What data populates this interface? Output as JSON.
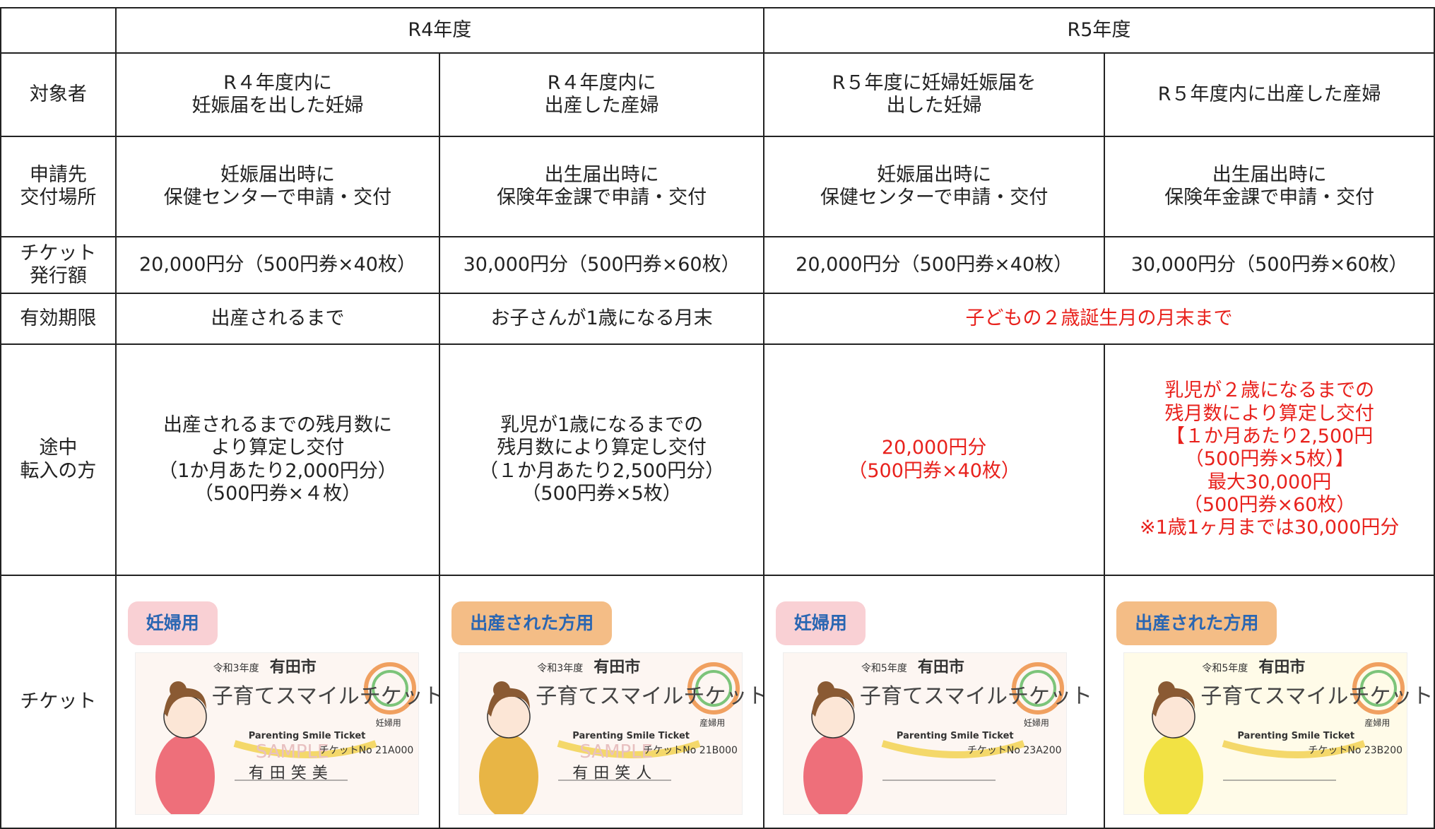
{
  "years": [
    "R4年度",
    "R5年度"
  ],
  "rows": [
    {
      "label": [
        "対象者"
      ],
      "cells": [
        [
          "R４年度内に",
          "妊娠届を出した妊婦"
        ],
        [
          "R４年度内に",
          "出産した産婦"
        ],
        [
          "R５年度に妊婦妊娠届を",
          "出した妊婦"
        ],
        [
          "R５年度内に出産した産婦"
        ]
      ]
    },
    {
      "label": [
        "申請先",
        "交付場所"
      ],
      "cells": [
        [
          "妊娠届出時に",
          "保健センターで申請・交付"
        ],
        [
          "出生届出時に",
          "保険年金課で申請・交付"
        ],
        [
          "妊娠届出時に",
          "保健センターで申請・交付"
        ],
        [
          "出生届出時に",
          "保険年金課で申請・交付"
        ]
      ]
    },
    {
      "label": [
        "チケット",
        "発行額"
      ],
      "cells": [
        [
          "20,000円分（500円券×40枚）"
        ],
        [
          "30,000円分（500円券×60枚）"
        ],
        [
          "20,000円分（500円券×40枚）"
        ],
        [
          "30,000円分（500円券×60枚）"
        ]
      ]
    },
    {
      "label": [
        "有効期限"
      ],
      "cells": [
        [
          "出産されるまで"
        ],
        [
          "お子さんが1歳になる月末"
        ],
        [
          "子どもの２歳誕生月の月末まで"
        ]
      ]
    },
    {
      "label": [
        "途中",
        "転入の方"
      ],
      "cells": [
        [
          "出産されるまでの残月数に",
          "より算定し交付",
          "（1か月あたり2,000円分）",
          "（500円券×４枚）"
        ],
        [
          "乳児が1歳になるまでの",
          "残月数により算定し交付",
          "（１か月あたり2,500円分）",
          "（500円券×5枚）"
        ],
        [
          "20,000円分",
          "（500円券×40枚）"
        ],
        [
          "乳児が２歳になるまでの",
          "残月数により算定し交付",
          "【１か月あたり2,500円",
          "（500円券×5枚）】",
          "最大30,000円",
          "（500円券×60枚）",
          "※1歳1ヶ月までは30,000円分"
        ]
      ]
    }
  ],
  "tickets": {
    "label": "チケット",
    "items": [
      {
        "tag": "妊婦用",
        "year": "令和3年度",
        "city": "有田市",
        "title": "子育てスマイルチケット",
        "english": "Parenting Smile Ticket",
        "kind": "妊婦用",
        "number": "チケットNo 21A000",
        "name": "有田笑美",
        "sample": "SAMPLE"
      },
      {
        "tag": "出産された方用",
        "year": "令和3年度",
        "city": "有田市",
        "title": "子育てスマイルチケット",
        "english": "Parenting Smile Ticket",
        "kind": "産婦用",
        "number": "チケットNo 21B000",
        "name": "有田笑人",
        "sample": "SAMPLE"
      },
      {
        "tag": "妊婦用",
        "year": "令和5年度",
        "city": "有田市",
        "title": "子育てスマイルチケット",
        "english": "Parenting Smile Ticket",
        "kind": "妊婦用",
        "number": "チケットNo 23A200"
      },
      {
        "tag": "出産された方用",
        "year": "令和5年度",
        "city": "有田市",
        "title": "子育てスマイルチケット",
        "english": "Parenting Smile Ticket",
        "kind": "産婦用",
        "number": "チケットNo 23B200"
      }
    ]
  }
}
